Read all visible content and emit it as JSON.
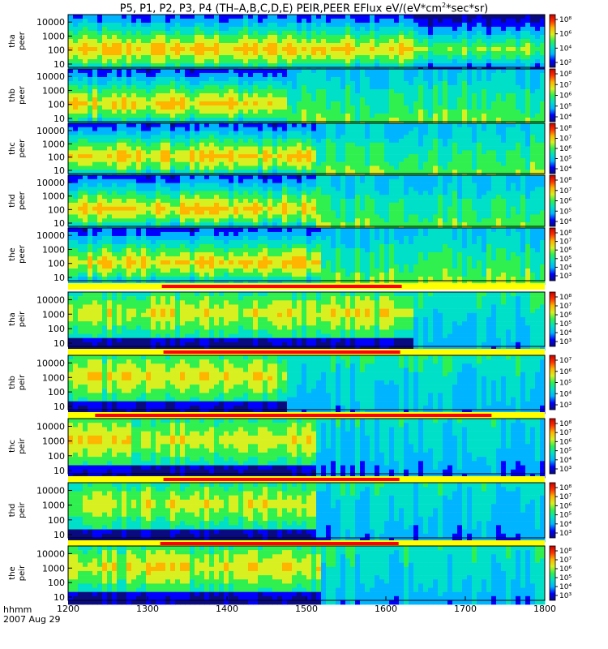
{
  "title_parts": {
    "before": "P5, P1, P2, P3, P4 (TH–A,B,C,D,E) PEIR,PEER EFlux eV/(eV*cm",
    "sup": "2",
    "after": "*sec*sr)"
  },
  "footer": {
    "hhmm": "hhmm",
    "date": "2007 Aug 29"
  },
  "chart_data": {
    "type": "heatmap",
    "x_ticks": [
      "1200",
      "1300",
      "1400",
      "1500",
      "1600",
      "1700",
      "1800"
    ],
    "xlim": [
      1200,
      1800
    ],
    "y_ticks": [
      "10",
      "100",
      "1000",
      "10000"
    ],
    "y_scale": "log",
    "colormap": [
      "#0a0a80",
      "#0000ff",
      "#00b4ff",
      "#00e0c8",
      "#30f050",
      "#d8f020",
      "#ffb400",
      "#ff3000",
      "#c80000"
    ],
    "panels": [
      {
        "name": "tha",
        "species": "peer",
        "cbar_ticks": [
          "10⁸",
          "10⁶",
          "10⁴",
          "10²"
        ],
        "interval": null,
        "segments": [
          {
            "start": 1200,
            "end": 1632,
            "level": 0.72
          },
          {
            "start": 1632,
            "end": 1800,
            "level": 0.55
          }
        ]
      },
      {
        "name": "thb",
        "species": "peer",
        "cbar_ticks": [
          "10⁸",
          "10⁷",
          "10⁶",
          "10⁵",
          "10⁴"
        ],
        "interval": null,
        "segments": [
          {
            "start": 1200,
            "end": 1474,
            "level": 0.7
          },
          {
            "start": 1474,
            "end": 1800,
            "level": 0.42
          }
        ]
      },
      {
        "name": "thc",
        "species": "peer",
        "cbar_ticks": [
          "10⁸",
          "10⁷",
          "10⁶",
          "10⁵",
          "10⁴"
        ],
        "interval": null,
        "segments": [
          {
            "start": 1200,
            "end": 1510,
            "level": 0.7
          },
          {
            "start": 1510,
            "end": 1800,
            "level": 0.42
          }
        ]
      },
      {
        "name": "thd",
        "species": "peer",
        "cbar_ticks": [
          "10⁸",
          "10⁷",
          "10⁶",
          "10⁵",
          "10⁴"
        ],
        "interval": null,
        "segments": [
          {
            "start": 1200,
            "end": 1510,
            "level": 0.7
          },
          {
            "start": 1510,
            "end": 1800,
            "level": 0.42
          }
        ]
      },
      {
        "name": "the",
        "species": "peer",
        "cbar_ticks": [
          "10⁸",
          "10⁷",
          "10⁶",
          "10⁵",
          "10⁴",
          "10³"
        ],
        "interval": [
          1318,
          1620
        ],
        "segments": [
          {
            "start": 1200,
            "end": 1518,
            "level": 0.7
          },
          {
            "start": 1518,
            "end": 1800,
            "level": 0.42
          }
        ]
      },
      {
        "name": "tha",
        "species": "peir",
        "cbar_ticks": [
          "10⁸",
          "10⁷",
          "10⁶",
          "10⁵",
          "10⁴",
          "10³"
        ],
        "interval": [
          1320,
          1618
        ],
        "segments": [
          {
            "start": 1200,
            "end": 1632,
            "level": 0.65
          },
          {
            "start": 1632,
            "end": 1800,
            "level": 0.38
          }
        ]
      },
      {
        "name": "thb",
        "species": "peir",
        "cbar_ticks": [
          "10⁷",
          "10⁶",
          "10⁵",
          "10⁴",
          "10³"
        ],
        "interval": [
          1234,
          1733
        ],
        "segments": [
          {
            "start": 1200,
            "end": 1474,
            "level": 0.66
          },
          {
            "start": 1474,
            "end": 1800,
            "level": 0.38
          }
        ]
      },
      {
        "name": "thc",
        "species": "peir",
        "cbar_ticks": [
          "10⁸",
          "10⁷",
          "10⁶",
          "10⁵",
          "10⁴",
          "10³"
        ],
        "interval": [
          1320,
          1617
        ],
        "segments": [
          {
            "start": 1200,
            "end": 1510,
            "level": 0.66
          },
          {
            "start": 1510,
            "end": 1800,
            "level": 0.36
          }
        ]
      },
      {
        "name": "thd",
        "species": "peir",
        "cbar_ticks": [
          "10⁸",
          "10⁷",
          "10⁶",
          "10⁵",
          "10⁴",
          "10³"
        ],
        "interval": [
          1316,
          1616
        ],
        "segments": [
          {
            "start": 1200,
            "end": 1512,
            "level": 0.64
          },
          {
            "start": 1512,
            "end": 1800,
            "level": 0.36
          }
        ]
      },
      {
        "name": "the",
        "species": "peir",
        "cbar_ticks": [
          "10⁸",
          "10⁷",
          "10⁶",
          "10⁵",
          "10⁴",
          "10³"
        ],
        "interval": null,
        "segments": [
          {
            "start": 1200,
            "end": 1518,
            "level": 0.66
          },
          {
            "start": 1518,
            "end": 1800,
            "level": 0.38
          }
        ]
      }
    ]
  }
}
